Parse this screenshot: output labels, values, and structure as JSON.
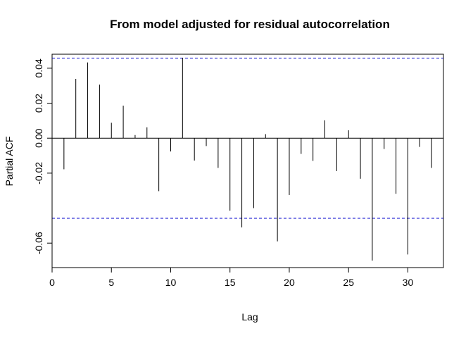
{
  "chart_data": {
    "type": "bar",
    "title": "From model adjusted for residual autocorrelation",
    "xlabel": "Lag",
    "ylabel": "Partial ACF",
    "xlim": [
      0,
      33
    ],
    "ylim": [
      -0.074,
      0.048
    ],
    "x_ticks": [
      0,
      5,
      10,
      15,
      20,
      25,
      30
    ],
    "y_ticks": [
      -0.06,
      -0.02,
      0.0,
      0.02,
      0.04
    ],
    "y_tick_labels": [
      "-0.06",
      "-0.02",
      "0.00",
      "0.02",
      "0.04"
    ],
    "confidence_limit": 0.0458,
    "lags": [
      1,
      2,
      3,
      4,
      5,
      6,
      7,
      8,
      9,
      10,
      11,
      12,
      13,
      14,
      15,
      16,
      17,
      18,
      19,
      20,
      21,
      22,
      23,
      24,
      25,
      26,
      27,
      28,
      29,
      30,
      31,
      32
    ],
    "values": [
      -0.0178,
      0.0339,
      0.0433,
      0.0306,
      0.0088,
      0.0186,
      0.0018,
      0.0062,
      -0.0303,
      -0.0076,
      0.046,
      -0.0128,
      -0.0045,
      -0.017,
      -0.0415,
      -0.051,
      -0.04,
      0.0023,
      -0.059,
      -0.0325,
      -0.009,
      -0.013,
      0.0102,
      -0.0188,
      0.0045,
      -0.0232,
      -0.07,
      -0.0062,
      -0.0318,
      -0.0665,
      -0.005,
      -0.017
    ],
    "bar_color": "#000000",
    "confidence_color": "#0000cc",
    "grid": false
  }
}
